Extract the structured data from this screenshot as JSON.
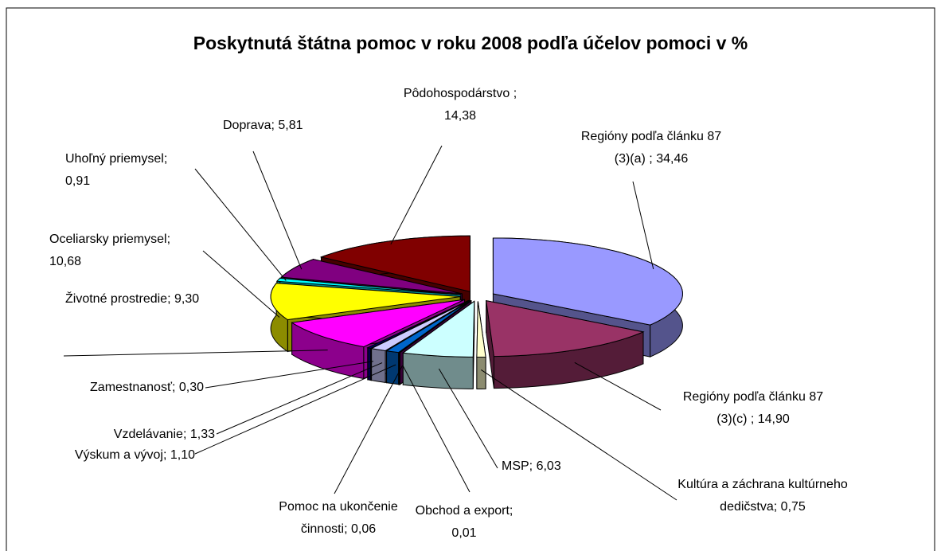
{
  "chart_data": {
    "type": "pie",
    "title": "Poskytnutá štátna pomoc v roku 2008 podľa účelov pomoci v %",
    "categories": [
      "Regióny podľa článku 87 (3)(a) ;",
      "Regióny podľa článku 87 (3)(c) ;",
      "Kultúra a záchrana kultúrneho dedičstva;",
      "MSP;",
      "Obchod a export;",
      "Pomoc na ukončenie činnosti;",
      "Výskum a vývoj;",
      "Vzdelávanie;",
      "Zamestnanosť;",
      "Životné prostredie;",
      "Oceliarsky priemysel;",
      "Uhoľný priemysel;",
      "Doprava;",
      "Pôdohospodárstvo ;"
    ],
    "values": [
      34.46,
      14.9,
      0.75,
      6.03,
      0.01,
      0.06,
      1.1,
      1.33,
      0.3,
      9.3,
      10.68,
      0.91,
      5.81,
      14.38
    ],
    "value_labels": [
      "34,46",
      "14,90",
      "0,75",
      "6,03",
      "0,01",
      "0,06",
      "1,10",
      "1,33",
      "0,30",
      "9,30",
      "10,68",
      "0,91",
      "5,81",
      "14,38"
    ],
    "colors": [
      "#9999ff",
      "#993366",
      "#ffffcc",
      "#ccffff",
      "#660066",
      "#ff8080",
      "#0066cc",
      "#ccccff",
      "#000080",
      "#ff00ff",
      "#ffff00",
      "#00ffff",
      "#800080",
      "#800000"
    ]
  }
}
